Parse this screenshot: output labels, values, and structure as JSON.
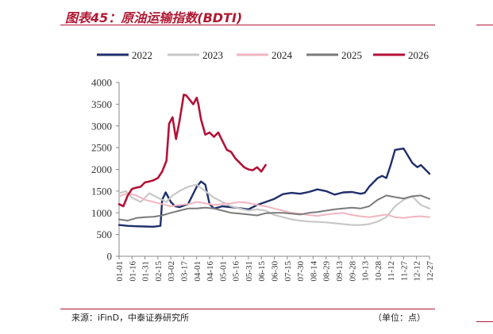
{
  "header": {
    "title": "图表45：原油运输指数(BDTI)"
  },
  "footer": {
    "source": "来源：iFinD，中泰证券研究所",
    "unit": "（单位：点）"
  },
  "colors": {
    "title_red": "#b01933",
    "s2022": "#1f2f6b",
    "s2023": "#c8c8c8",
    "s2024": "#f1b5c0",
    "s2025": "#7a7a7a",
    "s2026": "#b31237"
  },
  "chart_data": {
    "type": "line",
    "title": "",
    "xlabel": "",
    "ylabel": "",
    "ylim": [
      0,
      4000
    ],
    "y_ticks": [
      "0",
      "500",
      "1000",
      "1500",
      "2000",
      "2500",
      "3000",
      "3500",
      "4000"
    ],
    "x_ticks": [
      "01-01",
      "01-16",
      "01-31",
      "02-15",
      "03-02",
      "03-17",
      "04-01",
      "04-16",
      "05-01",
      "05-16",
      "05-31",
      "06-15",
      "06-30",
      "07-15",
      "07-30",
      "08-14",
      "08-29",
      "09-13",
      "09-28",
      "10-13",
      "10-28",
      "11-12",
      "11-27",
      "12-12",
      "12-27"
    ],
    "legend_position": "top",
    "series": [
      {
        "name": "2022",
        "color": "#1f2f6b",
        "width": 2.4,
        "x": [
          0,
          10,
          20,
          30,
          40,
          44,
          48,
          50,
          54,
          60,
          65,
          70,
          80,
          90,
          95,
          100,
          105,
          110,
          120,
          135,
          150,
          160,
          170,
          180,
          190,
          200,
          210,
          220,
          230,
          240,
          250,
          260,
          270,
          280,
          285,
          290,
          300,
          305,
          310,
          315,
          320,
          330,
          340,
          346,
          350,
          355,
          360
        ],
        "y": [
          720,
          700,
          690,
          685,
          680,
          690,
          700,
          1300,
          1470,
          1250,
          1150,
          1130,
          1200,
          1600,
          1720,
          1650,
          1200,
          1100,
          1150,
          1120,
          1080,
          1180,
          1250,
          1320,
          1430,
          1460,
          1440,
          1480,
          1540,
          1500,
          1420,
          1470,
          1480,
          1440,
          1460,
          1600,
          1800,
          1850,
          1800,
          2100,
          2450,
          2480,
          2150,
          2050,
          2100,
          2000,
          1900
        ]
      },
      {
        "name": "2023",
        "color": "#c8c8c8",
        "width": 2.2,
        "x": [
          0,
          8,
          15,
          25,
          35,
          45,
          55,
          62,
          70,
          80,
          90,
          100,
          110,
          120,
          130,
          140,
          150,
          160,
          170,
          180,
          190,
          200,
          210,
          220,
          230,
          240,
          250,
          260,
          270,
          280,
          290,
          300,
          310,
          320,
          330,
          340,
          350,
          360
        ],
        "y": [
          1450,
          1500,
          1350,
          1250,
          1450,
          1350,
          1250,
          1400,
          1500,
          1600,
          1650,
          1500,
          1350,
          1250,
          1150,
          1100,
          1050,
          1080,
          1050,
          950,
          900,
          850,
          820,
          800,
          790,
          780,
          760,
          740,
          720,
          720,
          740,
          800,
          900,
          1150,
          1300,
          1380,
          1180,
          1100
        ]
      },
      {
        "name": "2024",
        "color": "#f1b5c0",
        "width": 2.0,
        "x": [
          0,
          10,
          20,
          30,
          40,
          50,
          60,
          70,
          80,
          90,
          100,
          110,
          120,
          130,
          140,
          150,
          160,
          170,
          180,
          190,
          200,
          210,
          220,
          230,
          240,
          250,
          260,
          270,
          280,
          290,
          300,
          310,
          320,
          330,
          340,
          350,
          360
        ],
        "y": [
          1380,
          1450,
          1400,
          1300,
          1250,
          1200,
          1150,
          1180,
          1200,
          1250,
          1220,
          1180,
          1200,
          1220,
          1250,
          1230,
          1180,
          1150,
          1100,
          1050,
          1000,
          980,
          950,
          930,
          960,
          980,
          1000,
          950,
          920,
          900,
          930,
          960,
          900,
          880,
          910,
          920,
          900
        ]
      },
      {
        "name": "2025",
        "color": "#7a7a7a",
        "width": 2.0,
        "x": [
          0,
          10,
          20,
          30,
          40,
          50,
          60,
          70,
          80,
          90,
          100,
          110,
          120,
          130,
          140,
          150,
          160,
          170,
          180,
          190,
          200,
          210,
          220,
          230,
          240,
          250,
          260,
          270,
          280,
          290,
          300,
          310,
          320,
          330,
          340,
          350,
          360
        ],
        "y": [
          850,
          820,
          880,
          900,
          910,
          940,
          1000,
          1050,
          1100,
          1100,
          1120,
          1100,
          1050,
          1000,
          980,
          960,
          940,
          990,
          1000,
          1000,
          980,
          960,
          1000,
          1020,
          1050,
          1080,
          1100,
          1120,
          1100,
          1150,
          1300,
          1400,
          1360,
          1330,
          1380,
          1400,
          1320
        ]
      },
      {
        "name": "2026",
        "color": "#b31237",
        "width": 2.6,
        "x": [
          0,
          5,
          10,
          15,
          20,
          25,
          30,
          35,
          40,
          45,
          50,
          55,
          58,
          62,
          66,
          70,
          75,
          78,
          82,
          86,
          90,
          92,
          95,
          100,
          105,
          110,
          115,
          120,
          125,
          130,
          135,
          140,
          145,
          150,
          155,
          160,
          165,
          170
        ],
        "y": [
          1200,
          1150,
          1400,
          1550,
          1580,
          1600,
          1700,
          1720,
          1750,
          1800,
          1950,
          2200,
          3050,
          3200,
          2700,
          3100,
          3720,
          3700,
          3600,
          3500,
          3650,
          3500,
          3150,
          2800,
          2850,
          2750,
          2850,
          2650,
          2450,
          2400,
          2250,
          2150,
          2050,
          2000,
          1980,
          2050,
          1950,
          2100
        ]
      }
    ]
  }
}
